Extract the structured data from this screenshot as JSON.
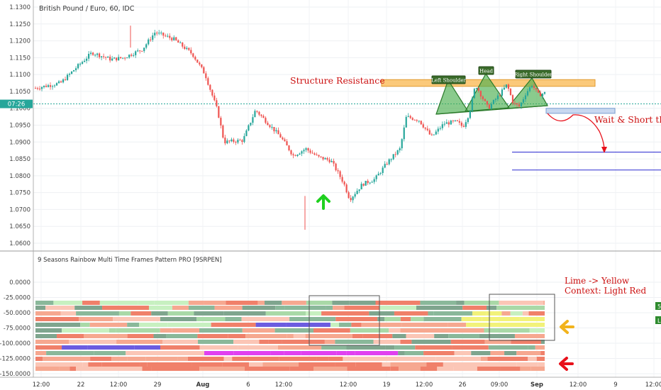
{
  "chart_data": [
    {
      "type": "candlestick",
      "title": "British Pound / Euro, 60, IDC",
      "ylim": [
        1.06,
        1.13
      ],
      "y_ticks": [
        "1.1300",
        "1.1250",
        "1.1200",
        "1.1150",
        "1.1100",
        "1.1050",
        "1.1000",
        "1.0950",
        "1.0900",
        "1.0850",
        "1.0800",
        "1.0750",
        "1.0700",
        "1.0650",
        "1.0600"
      ],
      "current_price_label": "07:26",
      "current_price": 1.1013,
      "x_ticks": [
        "12:00",
        "22",
        "12:00",
        "29",
        "Aug",
        "6",
        "12:00",
        "12",
        "12:00",
        "19",
        "12:00",
        "26",
        "09:00",
        "Sep",
        "12:00",
        "9",
        "12:00"
      ],
      "price_path": [
        [
          0,
          1.106
        ],
        [
          4,
          1.1075
        ],
        [
          7,
          1.113
        ],
        [
          9,
          1.1165
        ],
        [
          12,
          1.1145
        ],
        [
          14,
          1.115
        ],
        [
          17,
          1.1175
        ],
        [
          19,
          1.1225
        ],
        [
          22,
          1.1205
        ],
        [
          25,
          1.116
        ],
        [
          27,
          1.11
        ],
        [
          29,
          1.099
        ],
        [
          30,
          1.09
        ],
        [
          33,
          1.0905
        ],
        [
          35,
          1.0995
        ],
        [
          37,
          1.0955
        ],
        [
          39,
          1.0915
        ],
        [
          41,
          1.086
        ],
        [
          43,
          1.088
        ],
        [
          45,
          1.0855
        ],
        [
          47,
          1.0845
        ],
        [
          49,
          1.078
        ],
        [
          50,
          1.073
        ],
        [
          52,
          1.0775
        ],
        [
          54,
          1.079
        ],
        [
          56,
          1.084
        ],
        [
          58,
          1.088
        ],
        [
          59,
          1.0975
        ],
        [
          61,
          1.0965
        ],
        [
          63,
          1.0915
        ],
        [
          65,
          1.0955
        ],
        [
          67,
          1.096
        ],
        [
          68,
          1.0945
        ],
        [
          69,
          1.0985
        ],
        [
          70,
          1.107
        ],
        [
          71,
          1.1035
        ],
        [
          72,
          1.1
        ],
        [
          74,
          1.1045
        ],
        [
          75,
          1.107
        ],
        [
          76,
          1.1015
        ],
        [
          77,
          1.1005
        ],
        [
          78,
          1.1045
        ],
        [
          79,
          1.107
        ],
        [
          80,
          1.104
        ],
        [
          81,
          1.1045
        ]
      ],
      "annotations": {
        "structure_resistance": "Structure Resistance",
        "left_shoulder": "Left Shoulder",
        "head": "Head",
        "right_shoulder": "Right Shoulder",
        "wait_short": "Wait & Short the B"
      },
      "resistance_zone": [
        1.1065,
        1.1085
      ],
      "neckline_zone": [
        1.0985,
        1.1
      ],
      "target_lines": [
        1.087,
        1.0817
      ]
    },
    {
      "type": "heatmap",
      "title": "9 Seasons Rainbow Multi Time Frames Pattern PRO [9SRPEN]",
      "ylim": [
        -155000,
        5000
      ],
      "y_ticks": [
        "0.0000",
        "-25.0000",
        "-50.0000",
        "-75.0000",
        "-100.0000",
        "-125.0000",
        "-150.0000"
      ],
      "annotation_line1": "Lime -> Yellow",
      "annotation_line2": "Context: Light Red",
      "right_badges": [
        "5",
        "L"
      ],
      "rows": 14
    }
  ],
  "colors": {
    "up": "#26a69a",
    "down": "#ef5350",
    "accent_text": "#cc1010",
    "pattern_fill": "#4caf50",
    "resistance_fill": "#fbc97a",
    "neckline_fill": "#c8d8f0",
    "target_line": "#2a2ad0",
    "arrow_up": "#1fd01f",
    "arrow_yellow": "#f2b31c",
    "arrow_red": "#e8101a"
  }
}
